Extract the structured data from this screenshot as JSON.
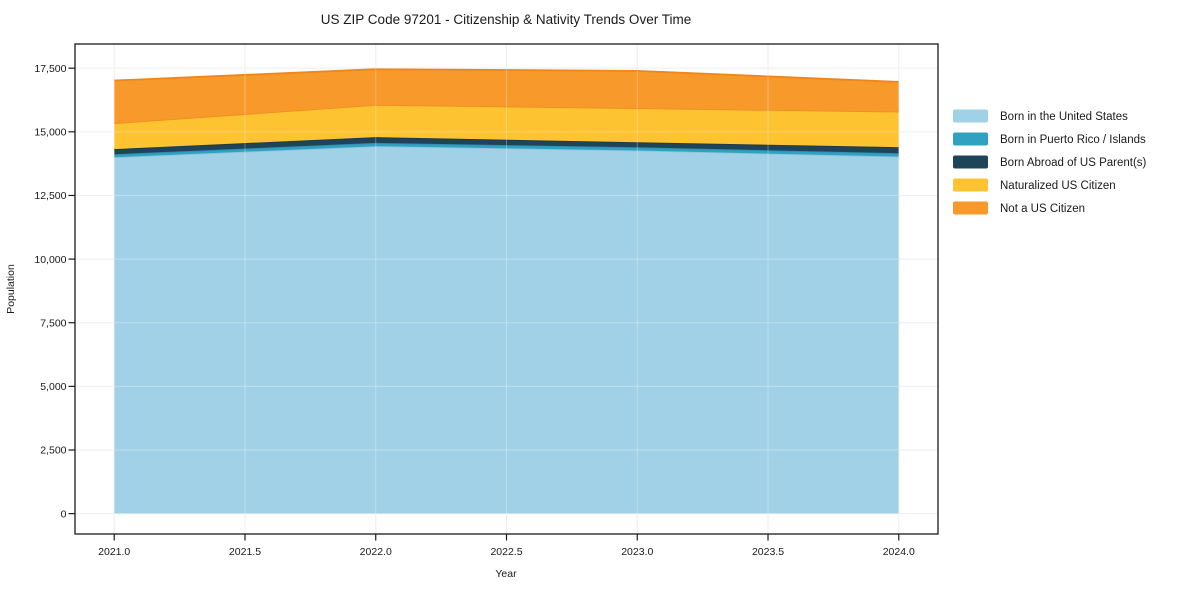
{
  "chart_data": {
    "type": "area",
    "stacked": true,
    "title": "US ZIP Code 97201 - Citizenship & Nativity Trends Over Time",
    "xlabel": "Year",
    "ylabel": "Population",
    "x": [
      2021,
      2022,
      2023,
      2024
    ],
    "series": [
      {
        "name": "Born in the United States",
        "color": "#a1d1e6",
        "edge_color": "#8fc4dc",
        "values": [
          14000,
          14435,
          14265,
          14025
        ]
      },
      {
        "name": "Born in Puerto Rico / Islands",
        "color": "#31a1c1",
        "edge_color": "#2a90ae",
        "values": [
          120,
          130,
          130,
          135
        ]
      },
      {
        "name": "Born Abroad of US Parent(s)",
        "color": "#1f4457",
        "edge_color": "#1a3a4b",
        "values": [
          200,
          225,
          195,
          235
        ]
      },
      {
        "name": "Naturalized US Citizen",
        "color": "#fdc330",
        "edge_color": "#ee8f1f",
        "values": [
          1020,
          1270,
          1340,
          1400
        ]
      },
      {
        "name": "Not a US Citizen",
        "color": "#f8992b",
        "edge_color": "#ee861a",
        "values": [
          1675,
          1400,
          1465,
          1165
        ]
      }
    ],
    "stack_totals": [
      17015,
      17460,
      17395,
      16960
    ],
    "xticks": [
      {
        "v": 2021.0,
        "label": "2021.0"
      },
      {
        "v": 2021.5,
        "label": "2021.5"
      },
      {
        "v": 2022.0,
        "label": "2022.0"
      },
      {
        "v": 2022.5,
        "label": "2022.5"
      },
      {
        "v": 2023.0,
        "label": "2023.0"
      },
      {
        "v": 2023.5,
        "label": "2023.5"
      },
      {
        "v": 2024.0,
        "label": "2024.0"
      }
    ],
    "yticks": [
      {
        "v": 0,
        "label": "0"
      },
      {
        "v": 2500,
        "label": "2,500"
      },
      {
        "v": 5000,
        "label": "5,000"
      },
      {
        "v": 7500,
        "label": "7,500"
      },
      {
        "v": 10000,
        "label": "10,000"
      },
      {
        "v": 12500,
        "label": "12,500"
      },
      {
        "v": 15000,
        "label": "15,000"
      },
      {
        "v": 17500,
        "label": "17,500"
      }
    ],
    "xlim": [
      2020.85,
      2024.15
    ],
    "ylim": [
      -800,
      18450
    ],
    "grid": true,
    "legend_position": "right-outside"
  },
  "colors": {
    "text": "#1a1a1a",
    "frame": "#1a1a1a",
    "grid": "#e7e7e7",
    "grid_overlay": "rgba(255,255,255,0.3)",
    "background": "#ffffff"
  }
}
